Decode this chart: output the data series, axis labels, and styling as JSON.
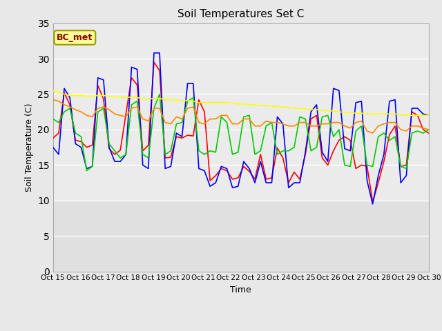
{
  "title": "Soil Temperatures Set C",
  "xlabel": "Time",
  "ylabel": "Soil Temperature (C)",
  "ylim": [
    0,
    35
  ],
  "yticks": [
    0,
    5,
    10,
    15,
    20,
    25,
    30,
    35
  ],
  "x_labels": [
    "Oct 15",
    "Oct 16",
    "Oct 17",
    "Oct 18",
    "Oct 19",
    "Oct 20",
    "Oct 21",
    "Oct 22",
    "Oct 23",
    "Oct 24",
    "Oct 25",
    "Oct 26",
    "Oct 27",
    "Oct 28",
    "Oct 29",
    "Oct 30"
  ],
  "annotation_text": "BC_met",
  "annotation_color": "#8B0000",
  "annotation_bg": "#FFFF99",
  "colors": {
    "-2cm": "#FF0000",
    "-4cm": "#0000FF",
    "-8cm": "#00CC00",
    "-16cm": "#FF8800",
    "-32cm": "#FFFF00"
  },
  "background_color": "#E8E8E8",
  "plot_bg": "#E0E0E0",
  "series_2cm": [
    18.8,
    19.5,
    25.2,
    23.5,
    18.5,
    18.3,
    17.5,
    17.8,
    26.2,
    24.3,
    17.3,
    16.5,
    17.1,
    22.2,
    27.3,
    26.3,
    17.0,
    17.8,
    29.5,
    28.3,
    16.0,
    16.1,
    19.0,
    18.8,
    19.2,
    19.1,
    24.2,
    22.5,
    12.8,
    13.5,
    14.5,
    14.2,
    13.0,
    13.2,
    14.8,
    14.1,
    13.0,
    16.5,
    13.0,
    13.2,
    17.4,
    16.0,
    12.5,
    14.0,
    13.0,
    16.5,
    21.5,
    22.0,
    16.0,
    15.0,
    17.0,
    18.5,
    19.0,
    18.5,
    14.5,
    15.0,
    14.8,
    9.8,
    12.5,
    15.5,
    19.3,
    20.5,
    14.8,
    15.0,
    22.5,
    22.0,
    20.0,
    19.5
  ],
  "series_4cm": [
    17.5,
    16.5,
    25.8,
    24.5,
    18.0,
    17.5,
    14.5,
    14.8,
    27.3,
    27.0,
    17.5,
    15.5,
    15.5,
    16.5,
    28.8,
    28.5,
    15.0,
    14.5,
    30.8,
    30.8,
    14.5,
    14.8,
    19.5,
    19.0,
    26.5,
    26.5,
    14.5,
    14.2,
    12.0,
    12.5,
    14.8,
    14.5,
    11.8,
    12.0,
    15.5,
    14.5,
    12.5,
    15.5,
    12.5,
    12.5,
    21.8,
    20.8,
    11.8,
    12.5,
    12.5,
    16.8,
    22.5,
    23.5,
    16.8,
    15.5,
    25.8,
    25.5,
    17.3,
    17.0,
    23.8,
    24.0,
    12.8,
    9.5,
    13.5,
    16.5,
    24.0,
    24.2,
    12.5,
    13.5,
    23.0,
    23.0,
    22.2,
    22.0
  ],
  "series_8cm": [
    21.5,
    21.0,
    22.5,
    23.0,
    19.5,
    19.0,
    14.2,
    14.8,
    22.5,
    23.0,
    18.0,
    17.0,
    16.0,
    16.5,
    23.5,
    24.0,
    16.5,
    16.0,
    23.0,
    25.0,
    16.5,
    17.0,
    20.8,
    21.0,
    24.0,
    24.5,
    17.0,
    16.5,
    17.0,
    16.8,
    21.8,
    21.0,
    16.5,
    16.8,
    21.8,
    22.0,
    16.5,
    17.0,
    20.5,
    21.0,
    16.5,
    17.0,
    17.0,
    17.5,
    21.8,
    21.5,
    17.0,
    17.5,
    21.8,
    22.0,
    19.0,
    20.0,
    15.0,
    14.8,
    19.8,
    20.5,
    15.0,
    14.8,
    19.0,
    19.5,
    18.5,
    19.0,
    14.8,
    14.5,
    19.5,
    19.8,
    19.5,
    20.0
  ],
  "series_16cm": [
    24.2,
    24.0,
    23.5,
    23.2,
    22.8,
    22.5,
    22.0,
    21.8,
    23.0,
    23.2,
    22.8,
    22.2,
    22.0,
    21.8,
    23.0,
    23.2,
    21.5,
    21.2,
    23.0,
    23.0,
    21.0,
    20.8,
    21.8,
    21.5,
    23.0,
    23.2,
    21.0,
    20.8,
    21.5,
    21.5,
    22.0,
    22.0,
    20.8,
    20.8,
    21.5,
    21.5,
    20.5,
    20.5,
    21.2,
    21.0,
    21.0,
    20.8,
    20.5,
    20.5,
    21.0,
    21.0,
    20.5,
    20.5,
    20.8,
    20.8,
    21.0,
    21.0,
    20.5,
    20.2,
    21.0,
    21.2,
    19.8,
    19.5,
    20.5,
    20.8,
    21.0,
    21.0,
    20.0,
    19.8,
    20.5,
    20.5,
    20.2,
    20.0
  ],
  "series_32cm": [
    25.5,
    25.2,
    25.0,
    24.8,
    24.8,
    24.8,
    24.7,
    24.7,
    24.8,
    24.8,
    24.7,
    24.6,
    24.6,
    24.5,
    24.6,
    24.5,
    24.4,
    24.3,
    24.4,
    24.4,
    24.2,
    24.2,
    24.2,
    24.0,
    24.1,
    24.0,
    23.8,
    23.8,
    23.8,
    23.8,
    23.8,
    23.8,
    23.7,
    23.6,
    23.6,
    23.5,
    23.5,
    23.4,
    23.4,
    23.3,
    23.2,
    23.2,
    23.1,
    23.0,
    23.0,
    22.9,
    22.8,
    22.8,
    22.7,
    22.7,
    22.6,
    22.5,
    22.4,
    22.4,
    22.3,
    22.3,
    22.2,
    22.2,
    22.2,
    22.2,
    22.2,
    22.2,
    22.1,
    22.0,
    22.0,
    22.0,
    22.0,
    22.0
  ]
}
